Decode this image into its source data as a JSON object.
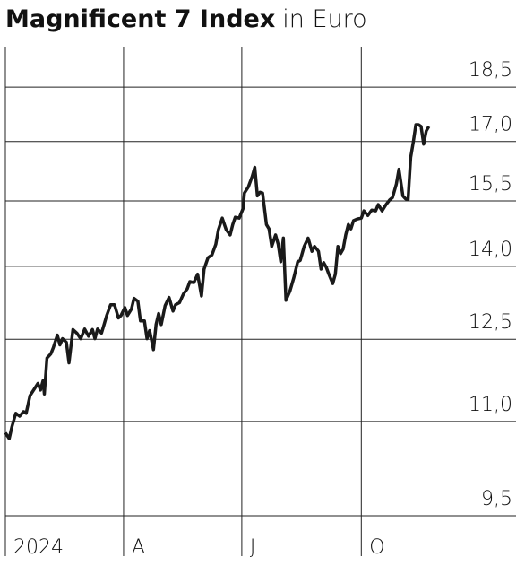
{
  "chart_data": {
    "type": "line",
    "title": "Magnificent 7 Index",
    "subtitle": "in Euro",
    "yscale": "log",
    "grid": true,
    "color": "#1a1a1a",
    "ylim": [
      9.5,
      19.7
    ],
    "yticks": [
      {
        "value": 9.5,
        "label": "9,5"
      },
      {
        "value": 11,
        "label": "11,0"
      },
      {
        "value": 12.5,
        "label": "12,5"
      },
      {
        "value": 14,
        "label": "14,0"
      },
      {
        "value": 15.5,
        "label": "15,5"
      },
      {
        "value": 17,
        "label": "17,0"
      },
      {
        "value": 18.5,
        "label": "18,5"
      }
    ],
    "xlim": [
      0,
      400
    ],
    "xticks": [
      {
        "value": 0,
        "label": "2024"
      },
      {
        "value": 91,
        "label": "A"
      },
      {
        "value": 182,
        "label": "J"
      },
      {
        "value": 274,
        "label": "O"
      }
    ],
    "x": [
      0,
      3,
      5,
      8,
      11,
      14,
      16,
      19,
      22,
      25,
      27,
      29,
      30,
      32,
      35,
      37,
      40,
      42,
      44,
      47,
      49,
      52,
      55,
      58,
      61,
      64,
      67,
      69,
      71,
      74,
      76,
      78,
      81,
      84,
      87,
      89,
      92,
      94,
      97,
      99,
      102,
      104,
      107,
      109,
      111,
      114,
      116,
      118,
      120,
      123,
      126,
      129,
      131,
      134,
      137,
      140,
      142,
      145,
      148,
      151,
      153,
      156,
      159,
      162,
      164,
      167,
      170,
      173,
      175,
      177,
      180,
      183,
      184,
      187,
      190,
      192,
      194,
      196,
      198,
      201,
      203,
      205,
      208,
      210,
      212,
      214,
      216,
      219,
      222,
      225,
      227,
      230,
      233,
      236,
      238,
      241,
      243,
      245,
      247,
      249,
      252,
      254,
      256,
      258,
      260,
      262,
      264,
      266,
      268,
      271,
      274,
      276,
      279,
      282,
      285,
      287,
      290,
      293,
      296,
      298,
      301,
      303,
      306,
      308,
      310,
      312,
      314,
      316,
      318,
      320,
      322,
      324,
      326
    ],
    "values": [
      10.81,
      10.71,
      10.91,
      11.14,
      11.09,
      11.17,
      11.14,
      11.45,
      11.56,
      11.67,
      11.55,
      11.72,
      11.48,
      12.14,
      12.22,
      12.34,
      12.58,
      12.39,
      12.51,
      12.44,
      12.05,
      12.69,
      12.62,
      12.51,
      12.7,
      12.56,
      12.69,
      12.51,
      12.7,
      12.62,
      12.79,
      12.97,
      13.19,
      13.19,
      12.92,
      12.97,
      13.13,
      12.97,
      13.1,
      13.32,
      13.26,
      12.86,
      12.86,
      12.51,
      12.67,
      12.3,
      12.79,
      13.01,
      12.79,
      13.17,
      13.34,
      13.06,
      13.19,
      13.23,
      13.41,
      13.52,
      13.67,
      13.65,
      13.83,
      13.37,
      13.94,
      14.19,
      14.25,
      14.49,
      14.82,
      15.09,
      14.82,
      14.7,
      14.94,
      15.11,
      15.09,
      15.32,
      15.69,
      15.84,
      16.1,
      16.33,
      15.62,
      15.71,
      15.69,
      14.94,
      14.84,
      14.44,
      14.7,
      14.49,
      14.1,
      14.63,
      13.28,
      13.47,
      13.75,
      14.1,
      14.13,
      14.44,
      14.63,
      14.33,
      14.44,
      14.33,
      13.94,
      14.08,
      13.98,
      13.83,
      13.63,
      13.83,
      14.44,
      14.28,
      14.38,
      14.7,
      14.94,
      14.84,
      15.03,
      15.07,
      15.09,
      15.26,
      15.15,
      15.28,
      15.26,
      15.41,
      15.26,
      15.41,
      15.53,
      15.58,
      15.91,
      16.28,
      15.62,
      15.55,
      15.53,
      16.58,
      16.98,
      17.45,
      17.45,
      17.4,
      16.93,
      17.28,
      17.4
    ]
  }
}
